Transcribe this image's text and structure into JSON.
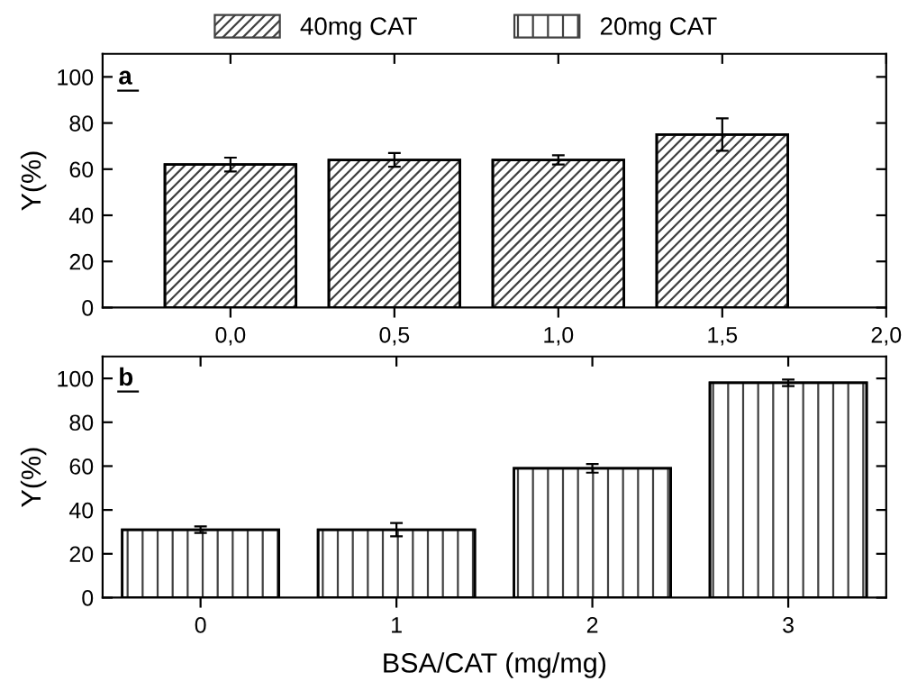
{
  "chart_data": [
    {
      "type": "bar",
      "x": [
        0,
        0.5,
        1.0,
        1.5
      ],
      "ylabel": "Y(%)",
      "annotations": [
        "a"
      ],
      "legend": "top",
      "series": [
        {
          "name": "40mg CAT",
          "color": "#404040",
          "values": [
            62,
            64,
            64,
            75
          ],
          "errors": [
            3,
            3,
            2,
            7
          ]
        }
      ],
      "xlim": [
        -0.39,
        2.0
      ],
      "xticks": [
        {
          "value": 0,
          "label": "0,0"
        },
        {
          "value": 0.5,
          "label": "0,5"
        },
        {
          "value": 1.0,
          "label": "1,0"
        },
        {
          "value": 1.5,
          "label": "1,5"
        },
        {
          "value": 2.0,
          "label": "2,0"
        }
      ],
      "ylim": [
        0,
        110
      ],
      "yticks": [
        0,
        20,
        40,
        60,
        80,
        100
      ],
      "grid": false
    },
    {
      "type": "bar",
      "categories": [
        "0",
        "1",
        "2",
        "3"
      ],
      "xlabel": "BSA/CAT (mg/mg)",
      "ylabel": "Y(%)",
      "annotations": [
        "b"
      ],
      "legend": "top",
      "series": [
        {
          "name": "20mg CAT",
          "color": "#404040",
          "values": [
            31,
            31,
            59,
            98
          ],
          "errors": [
            1.5,
            3,
            2,
            1.5
          ]
        }
      ],
      "ylim": [
        0,
        110
      ],
      "yticks": [
        0,
        20,
        40,
        60,
        80,
        100
      ],
      "grid": false
    }
  ]
}
